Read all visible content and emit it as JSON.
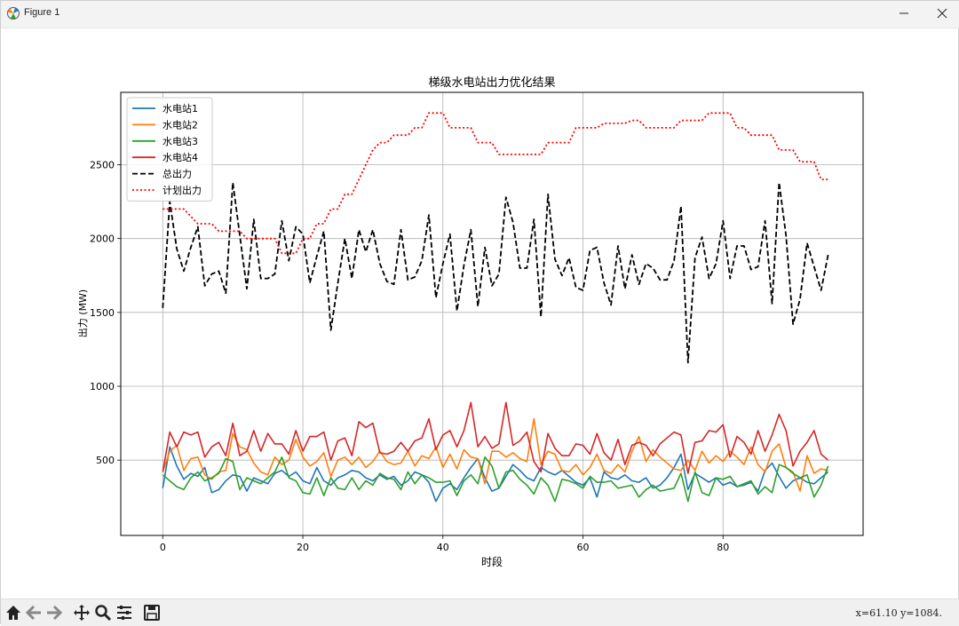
{
  "window": {
    "title": "Figure 1",
    "minimize_icon": "minimize-icon",
    "maximize_icon": "maximize-icon",
    "close_icon": "close-icon"
  },
  "toolbar": {
    "buttons": [
      "home-icon",
      "back-icon",
      "forward-icon",
      "pan-icon",
      "zoom-icon",
      "configure-subplots-icon",
      "save-icon"
    ],
    "coords_text": "x=61.10  y=1084."
  },
  "chart_data": {
    "type": "line",
    "title": "梯级水电站出力优化结果",
    "xlabel": "时段",
    "ylabel": "出力 (MW)",
    "xlim": [
      -6,
      100
    ],
    "ylim": [
      -10,
      2990
    ],
    "xticks": [
      0,
      20,
      40,
      60,
      80
    ],
    "yticks": [
      500,
      1000,
      1500,
      2000,
      2500
    ],
    "grid": true,
    "legend_position": "upper left",
    "series": [
      {
        "name": "水电站1",
        "color": "#1f77b4",
        "style": "solid",
        "values": [
          310,
          590,
          460,
          370,
          410,
          390,
          450,
          280,
          300,
          360,
          400,
          390,
          290,
          380,
          360,
          340,
          410,
          430,
          390,
          420,
          360,
          340,
          450,
          360,
          330,
          380,
          400,
          430,
          420,
          380,
          360,
          400,
          370,
          390,
          330,
          360,
          420,
          400,
          350,
          220,
          310,
          340,
          300,
          380,
          450,
          510,
          380,
          290,
          310,
          390,
          470,
          430,
          380,
          360,
          450,
          420,
          400,
          430,
          390,
          350,
          330,
          380,
          250,
          420,
          380,
          370,
          400,
          360,
          350,
          380,
          310,
          330,
          380,
          450,
          540,
          300,
          410,
          380,
          350,
          380,
          330,
          350,
          320,
          330,
          350,
          290,
          430,
          480,
          390,
          310,
          360,
          380,
          350,
          340,
          380,
          420
        ]
      },
      {
        "name": "水电站2",
        "color": "#ff7f0e",
        "style": "solid",
        "values": [
          420,
          560,
          600,
          430,
          510,
          520,
          400,
          370,
          420,
          430,
          680,
          590,
          570,
          480,
          420,
          400,
          520,
          470,
          500,
          640,
          520,
          460,
          490,
          550,
          390,
          500,
          520,
          470,
          520,
          450,
          490,
          560,
          490,
          470,
          480,
          560,
          460,
          530,
          510,
          590,
          450,
          540,
          440,
          570,
          520,
          510,
          340,
          560,
          560,
          520,
          550,
          510,
          490,
          780,
          470,
          560,
          540,
          430,
          420,
          470,
          400,
          450,
          540,
          430,
          410,
          470,
          420,
          560,
          660,
          490,
          570,
          520,
          480,
          440,
          430,
          500,
          430,
          560,
          480,
          530,
          490,
          560,
          520,
          470,
          590,
          470,
          420,
          560,
          610,
          450,
          420,
          290,
          530,
          410,
          440,
          430
        ]
      },
      {
        "name": "水电站3",
        "color": "#2ca02c",
        "style": "solid",
        "values": [
          400,
          360,
          320,
          300,
          380,
          420,
          360,
          380,
          410,
          510,
          490,
          300,
          380,
          360,
          340,
          380,
          420,
          520,
          380,
          360,
          280,
          270,
          380,
          260,
          380,
          310,
          300,
          380,
          300,
          360,
          330,
          410,
          380,
          370,
          300,
          420,
          340,
          400,
          380,
          350,
          350,
          360,
          260,
          360,
          400,
          340,
          520,
          460,
          310,
          420,
          430,
          370,
          330,
          270,
          380,
          330,
          220,
          370,
          360,
          340,
          310,
          390,
          350,
          350,
          360,
          310,
          320,
          330,
          250,
          300,
          330,
          290,
          300,
          310,
          410,
          220,
          420,
          280,
          260,
          380,
          370,
          390,
          320,
          340,
          360,
          270,
          320,
          280,
          470,
          450,
          410,
          380,
          400,
          250,
          330,
          460
        ]
      },
      {
        "name": "水电站4",
        "color": "#d62728",
        "style": "solid",
        "values": [
          420,
          690,
          590,
          690,
          670,
          690,
          520,
          590,
          620,
          530,
          750,
          530,
          560,
          700,
          560,
          680,
          610,
          610,
          540,
          700,
          560,
          660,
          660,
          690,
          500,
          630,
          650,
          530,
          760,
          720,
          750,
          550,
          540,
          560,
          620,
          560,
          630,
          650,
          780,
          570,
          670,
          700,
          590,
          700,
          890,
          590,
          660,
          580,
          610,
          890,
          600,
          630,
          690,
          490,
          420,
          680,
          580,
          530,
          530,
          610,
          600,
          540,
          680,
          550,
          500,
          640,
          470,
          600,
          620,
          600,
          530,
          610,
          650,
          690,
          670,
          410,
          620,
          630,
          700,
          690,
          740,
          520,
          660,
          620,
          540,
          700,
          560,
          670,
          810,
          700,
          460,
          560,
          620,
          700,
          540,
          500
        ]
      },
      {
        "name": "总出力",
        "color": "#000000",
        "style": "dashed",
        "values": [
          1530,
          2250,
          1930,
          1780,
          1940,
          2080,
          1680,
          1760,
          1780,
          1630,
          2380,
          2020,
          1660,
          2130,
          1730,
          1730,
          1760,
          2120,
          1850,
          2080,
          2030,
          1700,
          1880,
          2050,
          1380,
          1700,
          2000,
          1730,
          2060,
          1910,
          2060,
          1830,
          1710,
          1690,
          2060,
          1720,
          1740,
          1850,
          2160,
          1600,
          1830,
          2030,
          1510,
          1820,
          2060,
          1540,
          1940,
          1680,
          1760,
          2280,
          2110,
          1800,
          1800,
          2130,
          1470,
          2300,
          1860,
          1750,
          1870,
          1670,
          1650,
          1920,
          1940,
          1700,
          1550,
          1950,
          1660,
          1890,
          1690,
          1830,
          1800,
          1720,
          1720,
          1850,
          2220,
          1160,
          1870,
          2010,
          1730,
          1830,
          2120,
          1730,
          1950,
          1950,
          1790,
          1810,
          2120,
          1560,
          2380,
          2020,
          1420,
          1590,
          1970,
          1810,
          1650,
          1890
        ]
      },
      {
        "name": "计划出力",
        "color": "#ff0000",
        "style": "dotted",
        "values": [
          2200,
          2200,
          2200,
          2200,
          2150,
          2100,
          2100,
          2100,
          2050,
          2050,
          2050,
          2050,
          2000,
          2000,
          2000,
          2000,
          2000,
          1900,
          1900,
          1900,
          2000,
          2000,
          2100,
          2100,
          2200,
          2200,
          2300,
          2300,
          2400,
          2500,
          2600,
          2650,
          2650,
          2700,
          2700,
          2700,
          2750,
          2750,
          2850,
          2850,
          2850,
          2750,
          2750,
          2750,
          2750,
          2650,
          2650,
          2650,
          2570,
          2570,
          2570,
          2570,
          2570,
          2570,
          2570,
          2650,
          2650,
          2650,
          2650,
          2750,
          2750,
          2750,
          2750,
          2780,
          2780,
          2780,
          2780,
          2800,
          2800,
          2750,
          2750,
          2750,
          2750,
          2750,
          2800,
          2800,
          2800,
          2800,
          2850,
          2850,
          2850,
          2850,
          2750,
          2750,
          2700,
          2700,
          2700,
          2700,
          2600,
          2600,
          2600,
          2520,
          2520,
          2520,
          2400,
          2400
        ]
      }
    ]
  }
}
